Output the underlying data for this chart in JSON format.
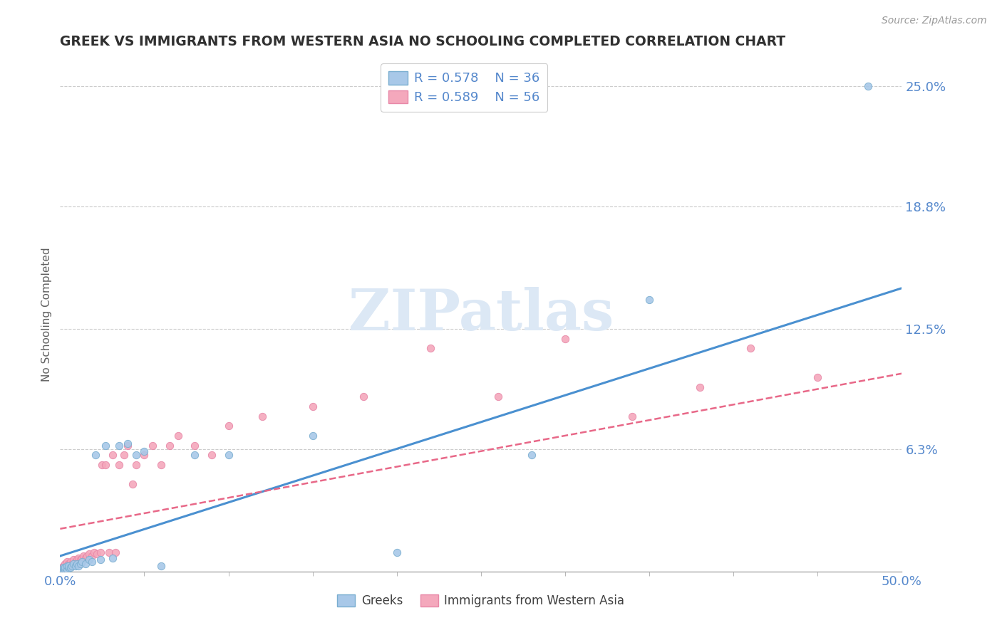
{
  "title": "GREEK VS IMMIGRANTS FROM WESTERN ASIA NO SCHOOLING COMPLETED CORRELATION CHART",
  "source": "Source: ZipAtlas.com",
  "ylabel": "No Schooling Completed",
  "xlabel": "",
  "xlim": [
    0.0,
    0.5
  ],
  "ylim": [
    0.0,
    0.265
  ],
  "yticks": [
    0.0,
    0.063,
    0.125,
    0.188,
    0.25
  ],
  "ytick_labels": [
    "",
    "6.3%",
    "12.5%",
    "18.8%",
    "25.0%"
  ],
  "xticks": [
    0.0,
    0.5
  ],
  "xtick_labels": [
    "0.0%",
    "50.0%"
  ],
  "greeks_R": 0.578,
  "greeks_N": 36,
  "immigrants_R": 0.589,
  "immigrants_N": 56,
  "blue_scatter_color": "#a8c8e8",
  "pink_scatter_color": "#f4a8bc",
  "blue_edge_color": "#7aaed0",
  "pink_edge_color": "#e888a8",
  "blue_line_color": "#4a90d0",
  "pink_line_color": "#e86888",
  "title_color": "#303030",
  "axis_label_color": "#606060",
  "tick_color": "#5588cc",
  "background_color": "#ffffff",
  "grid_color": "#cccccc",
  "watermark_color": "#dce8f5",
  "blue_slope": 0.276,
  "blue_intercept": 0.008,
  "pink_slope": 0.16,
  "pink_intercept": 0.022,
  "greeks_x": [
    0.001,
    0.002,
    0.002,
    0.003,
    0.003,
    0.004,
    0.004,
    0.005,
    0.005,
    0.006,
    0.007,
    0.008,
    0.009,
    0.01,
    0.011,
    0.012,
    0.013,
    0.015,
    0.017,
    0.019,
    0.021,
    0.024,
    0.027,
    0.031,
    0.035,
    0.04,
    0.045,
    0.05,
    0.06,
    0.08,
    0.1,
    0.15,
    0.2,
    0.28,
    0.35,
    0.48
  ],
  "greeks_y": [
    0.001,
    0.001,
    0.002,
    0.001,
    0.002,
    0.001,
    0.003,
    0.002,
    0.003,
    0.002,
    0.003,
    0.004,
    0.003,
    0.004,
    0.003,
    0.004,
    0.005,
    0.004,
    0.006,
    0.005,
    0.06,
    0.006,
    0.065,
    0.007,
    0.065,
    0.066,
    0.06,
    0.062,
    0.003,
    0.06,
    0.06,
    0.07,
    0.01,
    0.06,
    0.14,
    0.25
  ],
  "immigrants_x": [
    0.001,
    0.001,
    0.002,
    0.002,
    0.003,
    0.003,
    0.004,
    0.004,
    0.005,
    0.005,
    0.006,
    0.006,
    0.007,
    0.008,
    0.008,
    0.009,
    0.01,
    0.011,
    0.012,
    0.013,
    0.014,
    0.015,
    0.016,
    0.017,
    0.019,
    0.02,
    0.022,
    0.024,
    0.025,
    0.027,
    0.029,
    0.031,
    0.033,
    0.035,
    0.038,
    0.04,
    0.043,
    0.045,
    0.05,
    0.055,
    0.06,
    0.065,
    0.07,
    0.08,
    0.09,
    0.1,
    0.12,
    0.15,
    0.18,
    0.22,
    0.26,
    0.3,
    0.34,
    0.38,
    0.41,
    0.45
  ],
  "immigrants_y": [
    0.001,
    0.002,
    0.002,
    0.003,
    0.002,
    0.004,
    0.003,
    0.005,
    0.003,
    0.004,
    0.003,
    0.005,
    0.004,
    0.004,
    0.006,
    0.005,
    0.006,
    0.007,
    0.006,
    0.007,
    0.008,
    0.007,
    0.008,
    0.009,
    0.008,
    0.01,
    0.009,
    0.01,
    0.055,
    0.055,
    0.01,
    0.06,
    0.01,
    0.055,
    0.06,
    0.065,
    0.045,
    0.055,
    0.06,
    0.065,
    0.055,
    0.065,
    0.07,
    0.065,
    0.06,
    0.075,
    0.08,
    0.085,
    0.09,
    0.115,
    0.09,
    0.12,
    0.08,
    0.095,
    0.115,
    0.1
  ]
}
